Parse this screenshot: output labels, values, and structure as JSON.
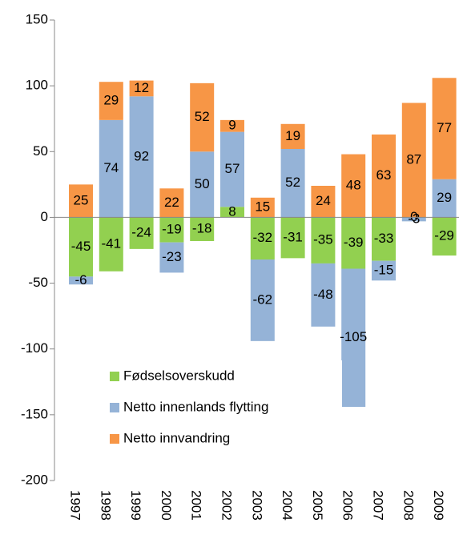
{
  "chart_data": {
    "type": "stacked_bar",
    "categories": [
      "1997",
      "1998",
      "1999",
      "2000",
      "2001",
      "2002",
      "2003",
      "2004",
      "2005",
      "2006",
      "2007",
      "2008",
      "2009"
    ],
    "series": [
      {
        "name": "Fødselsoverskudd",
        "color": "#92d050",
        "values": [
          -45,
          -41,
          -24,
          -19,
          -18,
          8,
          -32,
          -31,
          -35,
          -39,
          -33,
          0,
          -29
        ]
      },
      {
        "name": "Netto innenlands flytting",
        "color": "#95b3d7",
        "values": [
          -6,
          74,
          92,
          -23,
          50,
          57,
          -62,
          52,
          -48,
          -105,
          -15,
          -3,
          29
        ]
      },
      {
        "name": "Netto innvandring",
        "color": "#f79646",
        "values": [
          25,
          29,
          12,
          22,
          52,
          9,
          15,
          19,
          24,
          48,
          63,
          87,
          77
        ]
      }
    ],
    "ylim": [
      -200,
      150
    ],
    "yticks": [
      -200,
      -150,
      -100,
      -50,
      0,
      50,
      100,
      150
    ],
    "grid": false,
    "legend": "inside-bottom-left"
  }
}
